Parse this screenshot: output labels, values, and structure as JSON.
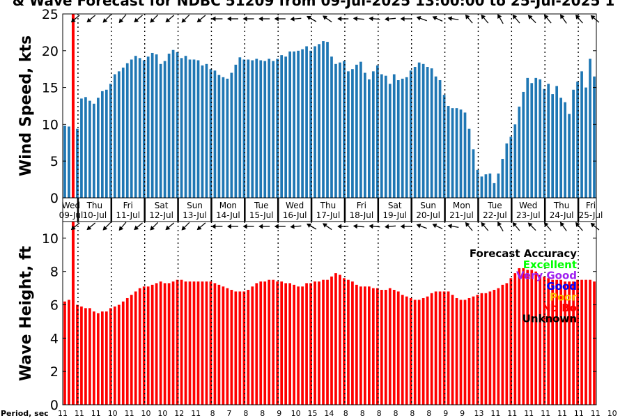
{
  "title": "& Wave Forecast for NDBC 51209 from 09-Jul-2025 13:00:00 to 25-Jul-2025 1",
  "colors": {
    "wind_bar": "#1f77b4",
    "wave_bar": "#ff0000",
    "now_line": "#ff0000",
    "excellent": "#00ff00",
    "very_good": "#a020f0",
    "good": "#0000ff",
    "poor": "#ffc000",
    "no_bo": "#ff0000",
    "unknown": "#000000"
  },
  "days": [
    {
      "dow": "Wed",
      "date": "09-Jul"
    },
    {
      "dow": "Thu",
      "date": "10-Jul"
    },
    {
      "dow": "Fri",
      "date": "11-Jul"
    },
    {
      "dow": "Sat",
      "date": "12-Jul"
    },
    {
      "dow": "Sun",
      "date": "13-Jul"
    },
    {
      "dow": "Mon",
      "date": "14-Jul"
    },
    {
      "dow": "Tue",
      "date": "15-Jul"
    },
    {
      "dow": "Wed",
      "date": "16-Jul"
    },
    {
      "dow": "Thu",
      "date": "17-Jul"
    },
    {
      "dow": "Fri",
      "date": "18-Jul"
    },
    {
      "dow": "Sat",
      "date": "19-Jul"
    },
    {
      "dow": "Sun",
      "date": "20-Jul"
    },
    {
      "dow": "Mon",
      "date": "21-Jul"
    },
    {
      "dow": "Tue",
      "date": "22-Jul"
    },
    {
      "dow": "Wed",
      "date": "23-Jul"
    },
    {
      "dow": "Thu",
      "date": "24-Jul"
    },
    {
      "dow": "Fri",
      "date": "25-Jul"
    }
  ],
  "legend": {
    "title": "Forecast Accuracy",
    "items": [
      {
        "label": "Excellent",
        "color": "#00ff00"
      },
      {
        "label": "Very Good",
        "color": "#a020f0"
      },
      {
        "label": "Good",
        "color": "#0000ff"
      },
      {
        "label": "Poor",
        "color": "#ffc000"
      },
      {
        "label": "No Bo",
        "color": "#ff0000"
      },
      {
        "label": "Unknown",
        "color": "#000000"
      }
    ]
  },
  "period_label": "Period, sec",
  "period_values": [
    "11",
    "11",
    "11",
    "10",
    "11",
    "10",
    "10",
    "12",
    "11",
    "8",
    "7",
    "8",
    "8",
    "9",
    "10",
    "15",
    "14",
    "8",
    "8",
    "8",
    "8",
    "8",
    "8",
    "9",
    "9",
    "13",
    "11",
    "11",
    "11",
    "11",
    "11",
    "11",
    "11",
    "10"
  ],
  "chart_data": [
    {
      "type": "bar",
      "name": "wind_speed",
      "ylabel": "Wind Speed, kts",
      "ylim": [
        0,
        25
      ],
      "yticks": [
        0,
        5,
        10,
        15,
        20,
        25
      ],
      "grid": false,
      "x_start": "09-Jul-2025 13:00",
      "x_step_hours": 3,
      "values": [
        9.8,
        9.7,
        9.0,
        9.4,
        13.5,
        13.7,
        13.2,
        12.8,
        13.6,
        14.5,
        14.7,
        15.5,
        16.8,
        17.2,
        17.7,
        18.3,
        18.8,
        19.3,
        19.0,
        18.7,
        19.2,
        19.7,
        19.5,
        18.2,
        18.6,
        19.6,
        20.1,
        19.8,
        19.0,
        19.3,
        18.8,
        18.8,
        18.7,
        18.0,
        18.2,
        17.5,
        17.3,
        16.7,
        16.4,
        16.2,
        17.0,
        18.1,
        19.1,
        18.8,
        18.8,
        18.7,
        18.9,
        18.7,
        18.6,
        18.9,
        18.6,
        18.9,
        19.4,
        19.2,
        19.9,
        19.9,
        20.0,
        20.2,
        20.6,
        20.0,
        20.6,
        20.9,
        21.3,
        21.2,
        19.2,
        18.2,
        18.4,
        18.6,
        17.2,
        17.5,
        18.1,
        18.5,
        17.0,
        16.1,
        17.2,
        18.0,
        16.8,
        16.6,
        15.5,
        16.8,
        16.0,
        16.2,
        16.4,
        17.3,
        17.8,
        18.4,
        18.2,
        17.8,
        17.6,
        16.5,
        16.0,
        14.0,
        12.5,
        12.2,
        12.2,
        12.0,
        11.6,
        9.4,
        6.6,
        3.8,
        2.9,
        3.2,
        3.3,
        2.0,
        3.3,
        5.3,
        7.4,
        8.3,
        10.0,
        12.4,
        14.4,
        16.3,
        15.6,
        16.3,
        16.1,
        14.8,
        15.5,
        14.1,
        15.2,
        13.6,
        13.0,
        11.4,
        14.7,
        15.8,
        17.2,
        15.0,
        18.9,
        16.5
      ]
    },
    {
      "type": "bar",
      "name": "wave_height",
      "ylabel": "Wave Height, ft",
      "ylim": [
        0,
        11
      ],
      "yticks": [
        0,
        2,
        4,
        6,
        8,
        10
      ],
      "grid": false,
      "x_start": "09-Jul-2025 13:00",
      "x_step_hours": 3,
      "values": [
        6.2,
        6.3,
        6.1,
        6.0,
        5.9,
        5.8,
        5.8,
        5.6,
        5.5,
        5.6,
        5.6,
        5.8,
        5.9,
        6.0,
        6.2,
        6.4,
        6.6,
        6.8,
        7.0,
        7.1,
        7.1,
        7.2,
        7.3,
        7.4,
        7.3,
        7.3,
        7.4,
        7.5,
        7.5,
        7.4,
        7.4,
        7.4,
        7.4,
        7.4,
        7.4,
        7.4,
        7.3,
        7.2,
        7.1,
        7.0,
        6.9,
        6.8,
        6.8,
        6.8,
        6.9,
        7.1,
        7.3,
        7.4,
        7.4,
        7.5,
        7.5,
        7.4,
        7.4,
        7.3,
        7.3,
        7.2,
        7.1,
        7.1,
        7.3,
        7.3,
        7.4,
        7.4,
        7.5,
        7.5,
        7.7,
        7.9,
        7.8,
        7.6,
        7.5,
        7.4,
        7.2,
        7.1,
        7.1,
        7.1,
        7.0,
        7.0,
        6.9,
        6.9,
        7.0,
        6.9,
        6.8,
        6.6,
        6.5,
        6.4,
        6.3,
        6.3,
        6.4,
        6.5,
        6.7,
        6.8,
        6.8,
        6.8,
        6.8,
        6.6,
        6.4,
        6.3,
        6.3,
        6.4,
        6.5,
        6.6,
        6.7,
        6.7,
        6.8,
        6.9,
        7.0,
        7.2,
        7.3,
        7.6,
        7.9,
        8.2,
        8.2,
        8.1,
        8.1,
        8.0,
        7.8,
        7.7,
        7.6,
        7.5,
        7.5,
        7.5,
        7.4,
        7.4,
        7.4,
        7.5,
        7.5,
        7.5,
        7.5,
        7.4
      ]
    }
  ]
}
